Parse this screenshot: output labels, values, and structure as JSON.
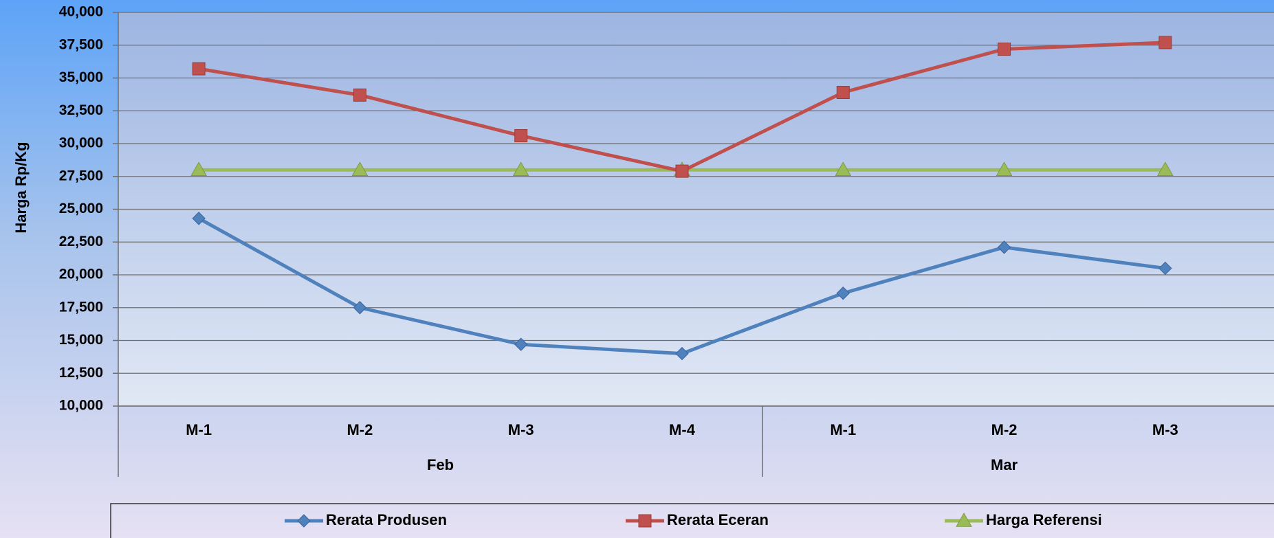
{
  "chart_data": {
    "type": "line",
    "title": "",
    "xlabel": "",
    "ylabel": "Harga Rp/Kg",
    "ylim": [
      10000,
      40000
    ],
    "yticks": [
      10000,
      12500,
      15000,
      17500,
      20000,
      22500,
      25000,
      27500,
      30000,
      32500,
      35000,
      37500,
      40000
    ],
    "ytick_labels": [
      "10,000",
      "12,500",
      "15,000",
      "17,500",
      "20,000",
      "22,500",
      "25,000",
      "27,500",
      "30,000",
      "32,500",
      "35,000",
      "37,500",
      "40,000"
    ],
    "categories": [
      "M-1",
      "M-2",
      "M-3",
      "M-4",
      "M-1",
      "M-2",
      "M-3"
    ],
    "groups": [
      {
        "label": "Feb",
        "count": 4
      },
      {
        "label": "Mar",
        "count": 3
      }
    ],
    "grid": true,
    "legend_position": "bottom",
    "series": [
      {
        "name": "Rerata Produsen",
        "color": "#4F81BD",
        "marker": "diamond",
        "values": [
          24300,
          17500,
          14700,
          14000,
          18600,
          22100,
          20500
        ]
      },
      {
        "name": "Rerata Eceran",
        "color": "#C0504D",
        "marker": "square",
        "values": [
          35700,
          33700,
          30600,
          27900,
          33900,
          37200,
          37700
        ]
      },
      {
        "name": "Harga Referensi",
        "color": "#9BBB59",
        "marker": "triangle",
        "values": [
          28000,
          28000,
          28000,
          28000,
          28000,
          28000,
          28000
        ]
      }
    ]
  }
}
